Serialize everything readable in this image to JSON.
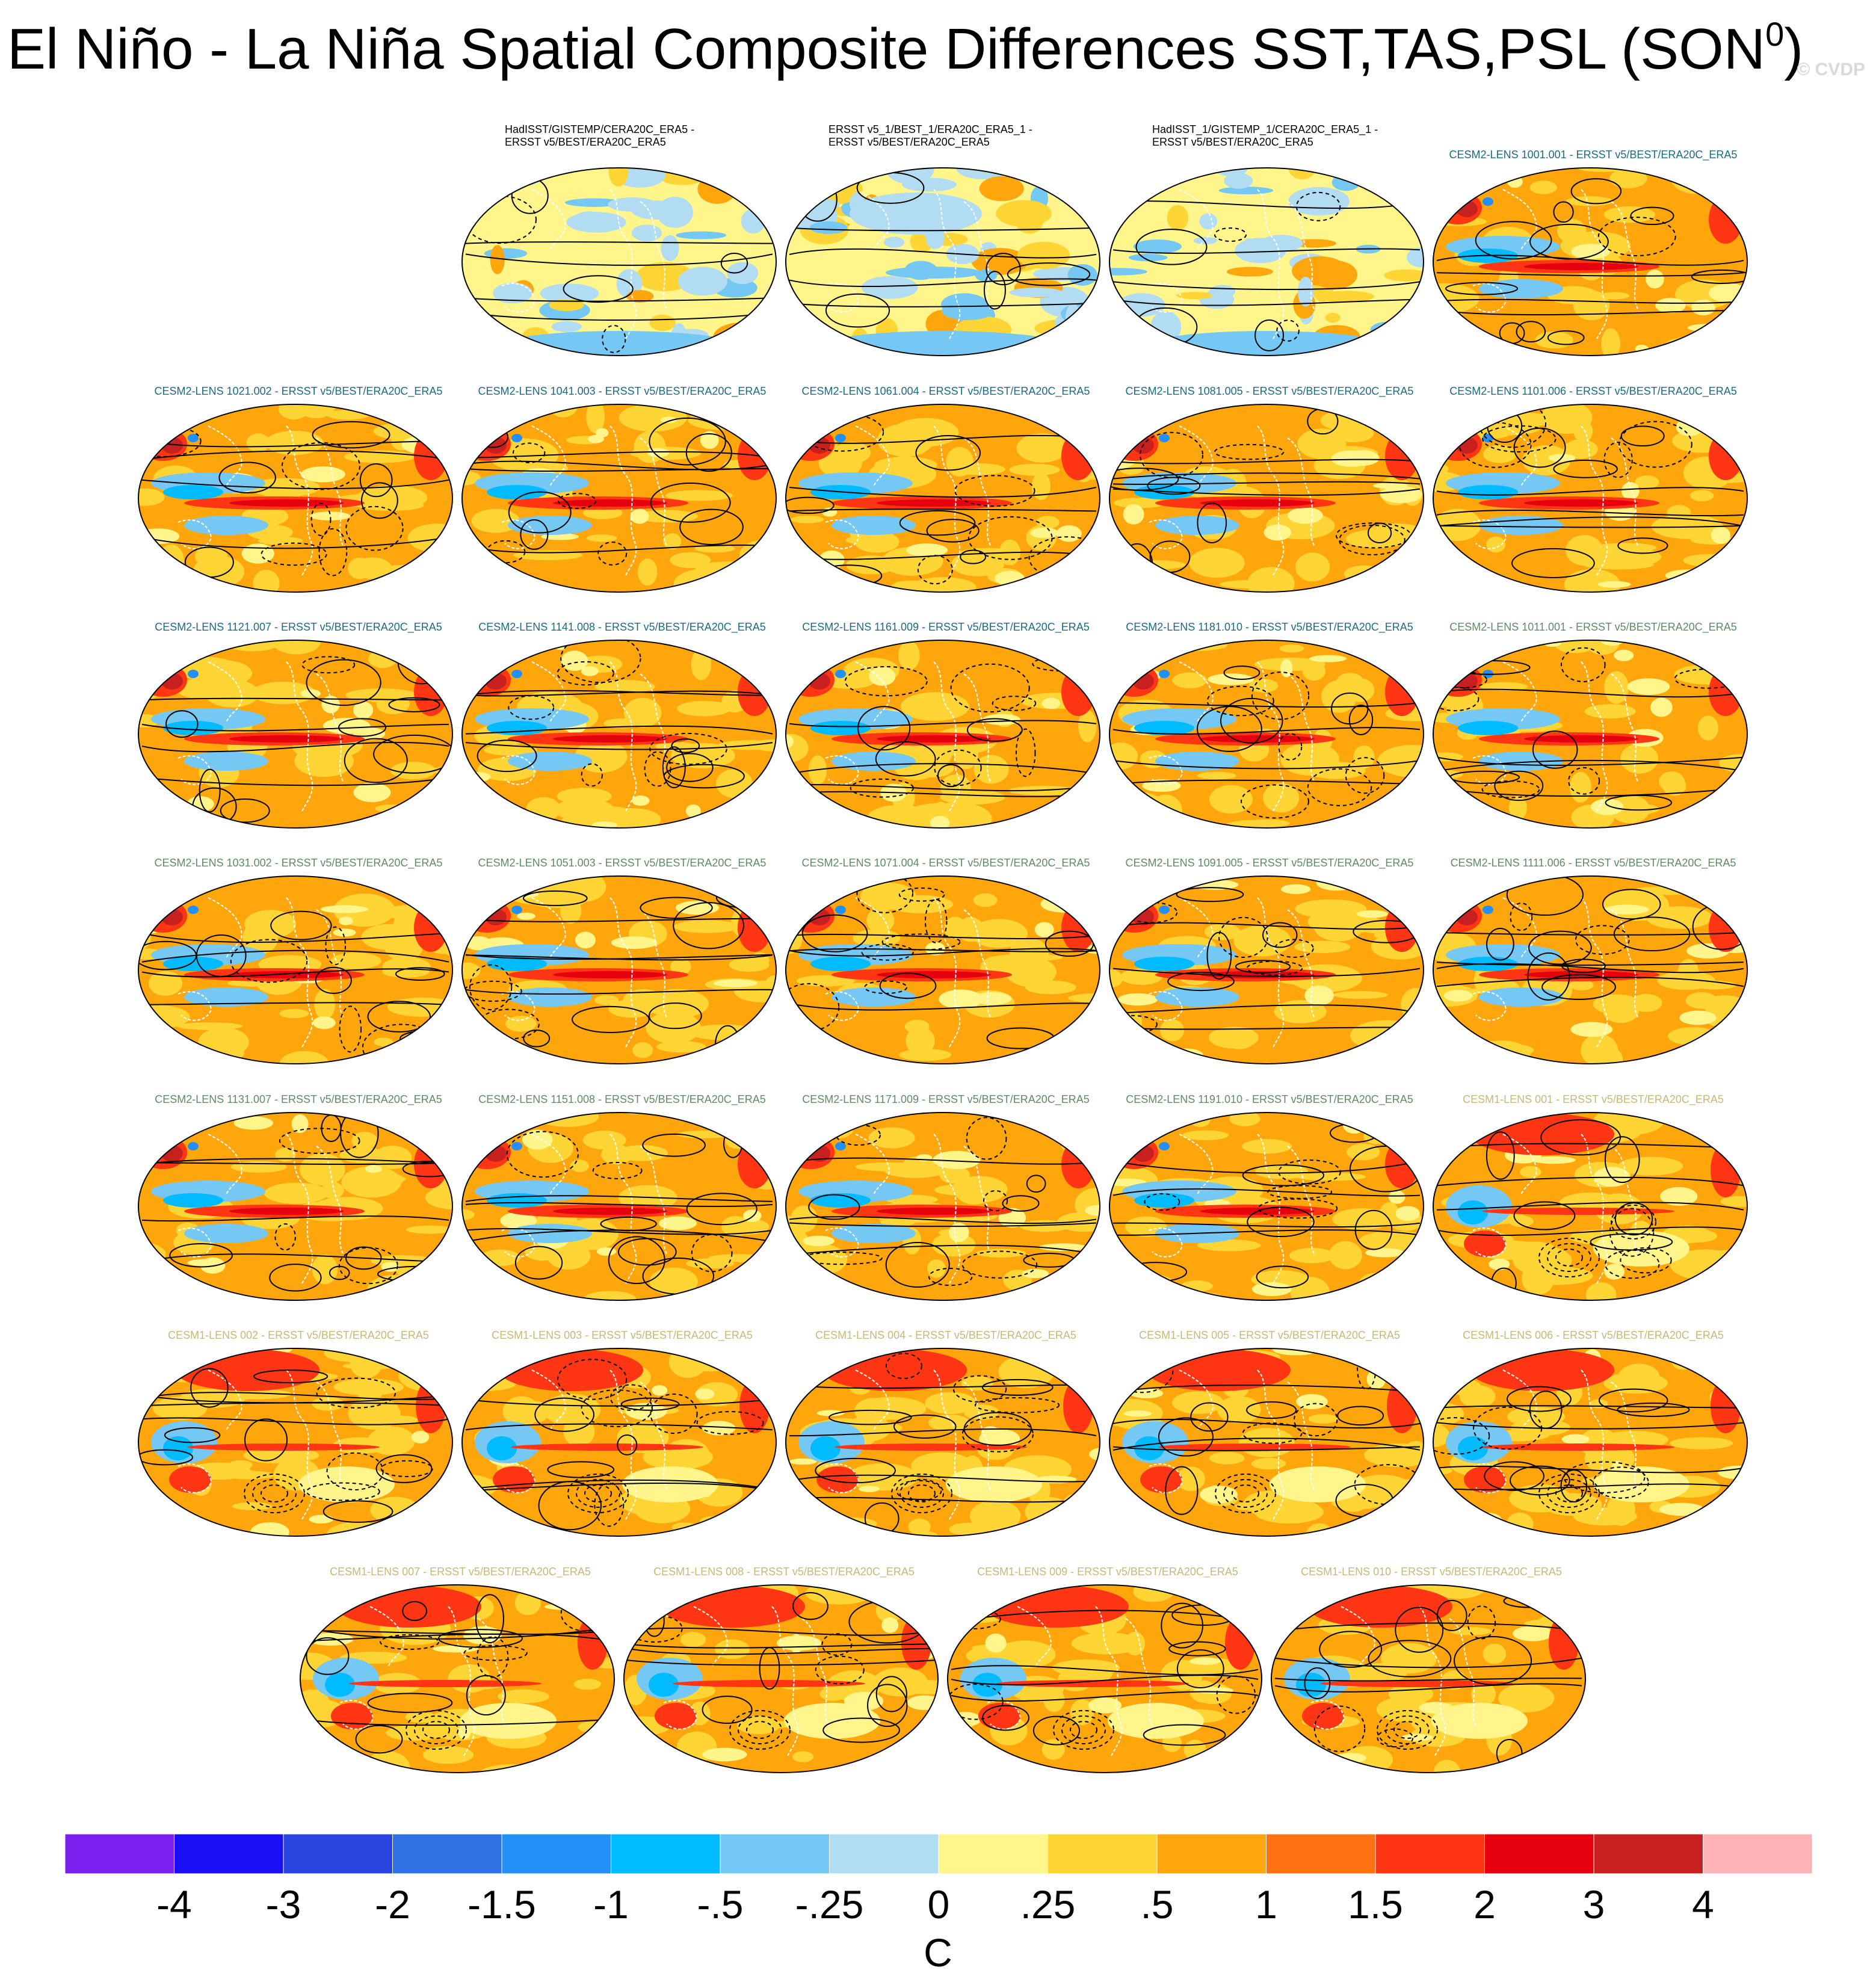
{
  "figure": {
    "title": "El Niño - La Niña Spatial Composite Differences SST,TAS,PSL (SON",
    "title_superscript": "0",
    "title_suffix": ")",
    "watermark": "© CVDP"
  },
  "series_colors": {
    "observations": "#000000",
    "cesm2_smbb": "#1a6b80",
    "cesm2_cmip6": "#5e8a64",
    "cesm1": "#c7b877"
  },
  "chart_data": {
    "type": "heatmap",
    "variables": [
      "SST",
      "TAS",
      "PSL"
    ],
    "season": "SON",
    "units": "C",
    "colorbar": {
      "tick_labels": [
        "-4",
        "-3",
        "-2",
        "-1.5",
        "-1",
        "-.5",
        "-.25",
        "0",
        ".25",
        ".5",
        "1",
        "1.5",
        "2",
        "3",
        "4"
      ],
      "colors": [
        "#7b1fef",
        "#1a0ff5",
        "#2a45e0",
        "#3170e2",
        "#2390f7",
        "#00bbff",
        "#74c8f3",
        "#b2dcf1",
        "#fff58a",
        "#ffd535",
        "#ffa60d",
        "#ff7212",
        "#ff3513",
        "#e6000d",
        "#c81f1f",
        "#ffb3b6"
      ]
    },
    "panels": [
      {
        "label": "HadISST/GISTEMP/CERA20C_ERA5 -\nERSST v5/BEST/ERA20C_ERA5",
        "group": "observations",
        "pattern": "obs_diff_small"
      },
      {
        "label": "ERSST v5_1/BEST_1/ERA20C_ERA5_1 -\nERSST v5/BEST/ERA20C_ERA5",
        "group": "observations",
        "pattern": "obs_diff_mixed"
      },
      {
        "label": "HadISST_1/GISTEMP_1/CERA20C_ERA5_1 -\nERSST v5/BEST/ERA20C_ERA5",
        "group": "observations",
        "pattern": "obs_diff_small"
      },
      {
        "label": "CESM2-LENS 1001.001 - ERSST v5/BEST/ERA20C_ERA5",
        "group": "cesm2_smbb",
        "pattern": "model_diff"
      },
      {
        "label": "CESM2-LENS 1021.002 - ERSST v5/BEST/ERA20C_ERA5",
        "group": "cesm2_smbb",
        "pattern": "model_diff"
      },
      {
        "label": "CESM2-LENS 1041.003 - ERSST v5/BEST/ERA20C_ERA5",
        "group": "cesm2_smbb",
        "pattern": "model_diff"
      },
      {
        "label": "CESM2-LENS 1061.004 - ERSST v5/BEST/ERA20C_ERA5",
        "group": "cesm2_smbb",
        "pattern": "model_diff"
      },
      {
        "label": "CESM2-LENS 1081.005 - ERSST v5/BEST/ERA20C_ERA5",
        "group": "cesm2_smbb",
        "pattern": "model_diff"
      },
      {
        "label": "CESM2-LENS 1101.006 - ERSST v5/BEST/ERA20C_ERA5",
        "group": "cesm2_smbb",
        "pattern": "model_diff"
      },
      {
        "label": "CESM2-LENS 1121.007 - ERSST v5/BEST/ERA20C_ERA5",
        "group": "cesm2_smbb",
        "pattern": "model_diff"
      },
      {
        "label": "CESM2-LENS 1141.008 - ERSST v5/BEST/ERA20C_ERA5",
        "group": "cesm2_smbb",
        "pattern": "model_diff"
      },
      {
        "label": "CESM2-LENS 1161.009 - ERSST v5/BEST/ERA20C_ERA5",
        "group": "cesm2_smbb",
        "pattern": "model_diff"
      },
      {
        "label": "CESM2-LENS 1181.010 - ERSST v5/BEST/ERA20C_ERA5",
        "group": "cesm2_smbb",
        "pattern": "model_diff"
      },
      {
        "label": "CESM2-LENS 1011.001 - ERSST v5/BEST/ERA20C_ERA5",
        "group": "cesm2_cmip6",
        "pattern": "model_diff"
      },
      {
        "label": "CESM2-LENS 1031.002 - ERSST v5/BEST/ERA20C_ERA5",
        "group": "cesm2_cmip6",
        "pattern": "model_diff"
      },
      {
        "label": "CESM2-LENS 1051.003 - ERSST v5/BEST/ERA20C_ERA5",
        "group": "cesm2_cmip6",
        "pattern": "model_diff"
      },
      {
        "label": "CESM2-LENS 1071.004 - ERSST v5/BEST/ERA20C_ERA5",
        "group": "cesm2_cmip6",
        "pattern": "model_diff"
      },
      {
        "label": "CESM2-LENS 1091.005 - ERSST v5/BEST/ERA20C_ERA5",
        "group": "cesm2_cmip6",
        "pattern": "model_diff"
      },
      {
        "label": "CESM2-LENS 1111.006 - ERSST v5/BEST/ERA20C_ERA5",
        "group": "cesm2_cmip6",
        "pattern": "model_diff"
      },
      {
        "label": "CESM2-LENS 1131.007 - ERSST v5/BEST/ERA20C_ERA5",
        "group": "cesm2_cmip6",
        "pattern": "model_diff"
      },
      {
        "label": "CESM2-LENS 1151.008 - ERSST v5/BEST/ERA20C_ERA5",
        "group": "cesm2_cmip6",
        "pattern": "model_diff"
      },
      {
        "label": "CESM2-LENS 1171.009 - ERSST v5/BEST/ERA20C_ERA5",
        "group": "cesm2_cmip6",
        "pattern": "model_diff"
      },
      {
        "label": "CESM2-LENS 1191.010 - ERSST v5/BEST/ERA20C_ERA5",
        "group": "cesm2_cmip6",
        "pattern": "model_diff"
      },
      {
        "label": "CESM1-LENS 001 - ERSST v5/BEST/ERA20C_ERA5",
        "group": "cesm1",
        "pattern": "cesm1_diff"
      },
      {
        "label": "CESM1-LENS 002 - ERSST v5/BEST/ERA20C_ERA5",
        "group": "cesm1",
        "pattern": "cesm1_diff"
      },
      {
        "label": "CESM1-LENS 003 - ERSST v5/BEST/ERA20C_ERA5",
        "group": "cesm1",
        "pattern": "cesm1_diff"
      },
      {
        "label": "CESM1-LENS 004 - ERSST v5/BEST/ERA20C_ERA5",
        "group": "cesm1",
        "pattern": "cesm1_diff"
      },
      {
        "label": "CESM1-LENS 005 - ERSST v5/BEST/ERA20C_ERA5",
        "group": "cesm1",
        "pattern": "cesm1_diff"
      },
      {
        "label": "CESM1-LENS 006 - ERSST v5/BEST/ERA20C_ERA5",
        "group": "cesm1",
        "pattern": "cesm1_diff"
      },
      {
        "label": "CESM1-LENS 007 - ERSST v5/BEST/ERA20C_ERA5",
        "group": "cesm1",
        "pattern": "cesm1_diff"
      },
      {
        "label": "CESM1-LENS 008 - ERSST v5/BEST/ERA20C_ERA5",
        "group": "cesm1",
        "pattern": "cesm1_diff"
      },
      {
        "label": "CESM1-LENS 009 - ERSST v5/BEST/ERA20C_ERA5",
        "group": "cesm1",
        "pattern": "cesm1_diff"
      },
      {
        "label": "CESM1-LENS 010 - ERSST v5/BEST/ERA20C_ERA5",
        "group": "cesm1",
        "pattern": "cesm1_diff"
      }
    ]
  }
}
